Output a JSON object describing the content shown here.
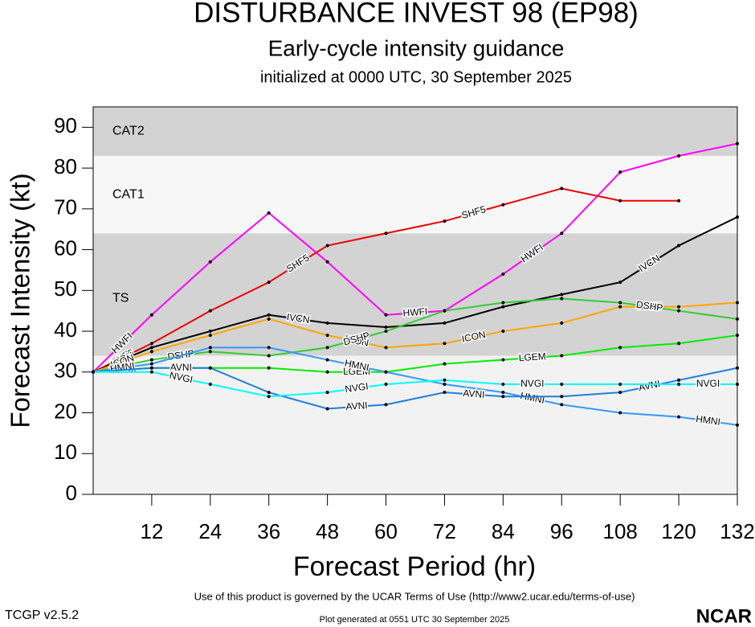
{
  "chart_data": {
    "type": "line",
    "title": "DISTURBANCE INVEST 98 (EP98)",
    "subtitle": "Early-cycle intensity guidance",
    "initialized": "initialized at 0000 UTC, 30 September 2025",
    "x_label": "Forecast Period (hr)",
    "y_label": "Forecast Intensity (kt)",
    "x": [
      0,
      12,
      24,
      36,
      48,
      60,
      72,
      84,
      96,
      108,
      120,
      132
    ],
    "xlim": [
      0,
      132
    ],
    "xticks": [
      12,
      24,
      36,
      48,
      60,
      72,
      84,
      96,
      108,
      120,
      132
    ],
    "ylim": [
      0,
      95
    ],
    "yticks": [
      0,
      10,
      20,
      30,
      40,
      50,
      60,
      70,
      80,
      90
    ],
    "bands": [
      {
        "label": "TS",
        "range": [
          34,
          64
        ]
      },
      {
        "label": "CAT1",
        "range": [
          64,
          83
        ]
      },
      {
        "label": "CAT2",
        "range": [
          83,
          95
        ]
      }
    ],
    "series": [
      {
        "name": "HWFI",
        "color": "#ff00ff",
        "values": [
          30,
          44,
          57,
          69,
          57,
          44,
          45,
          54,
          64,
          79,
          83,
          86
        ]
      },
      {
        "name": "SHF5",
        "color": "#ee0000",
        "values": [
          30,
          37,
          45,
          52,
          61,
          64,
          67,
          71,
          75,
          72,
          72,
          null
        ]
      },
      {
        "name": "IVCN",
        "color": "#000000",
        "values": [
          30,
          36,
          40,
          44,
          42,
          41,
          42,
          46,
          49,
          52,
          61,
          68
        ]
      },
      {
        "name": "ICON",
        "color": "#ffa500",
        "values": [
          30,
          35,
          39,
          43,
          39,
          36,
          37,
          40,
          42,
          46,
          46,
          47
        ]
      },
      {
        "name": "DSHP",
        "color": "#33cc33",
        "values": [
          30,
          33,
          35,
          34,
          36,
          40,
          45,
          47,
          48,
          47,
          45,
          43
        ]
      },
      {
        "name": "LGEM",
        "color": "#00ee00",
        "values": [
          30,
          31,
          31,
          31,
          30,
          30,
          32,
          33,
          34,
          36,
          37,
          39
        ]
      },
      {
        "name": "HMNI",
        "color": "#3399ff",
        "values": [
          30,
          32,
          36,
          36,
          33,
          30,
          27,
          25,
          22,
          20,
          19,
          17
        ]
      },
      {
        "name": "AVNI",
        "color": "#1e7fe0",
        "values": [
          30,
          31,
          31,
          25,
          21,
          22,
          25,
          24,
          24,
          25,
          28,
          31
        ]
      },
      {
        "name": "NVGI",
        "color": "#00ffff",
        "values": [
          30,
          30,
          27,
          24,
          25,
          27,
          28,
          27,
          27,
          27,
          27,
          27
        ]
      }
    ],
    "footer": "Use of this product is governed by the UCAR Terms of Use (http://www2.ucar.edu/terms-of-use)",
    "version": "TCGP v2.5.2",
    "generated": "Plot generated at 0551 UTC   30 September 2025",
    "logo": "NCAR"
  }
}
